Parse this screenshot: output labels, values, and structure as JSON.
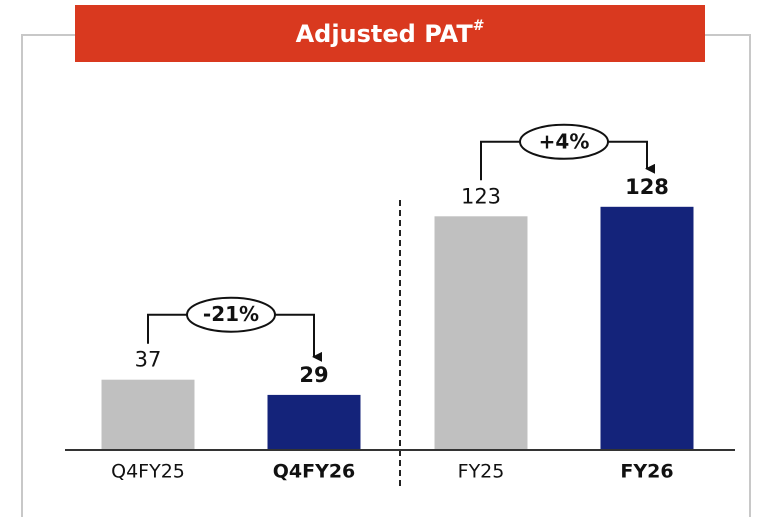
{
  "chart_data": {
    "type": "bar",
    "title": "Adjusted PAT",
    "title_superscript": "#",
    "categories": [
      "Q4FY25",
      "Q4FY26",
      "FY25",
      "FY26"
    ],
    "values": [
      37,
      29,
      123,
      128
    ],
    "colors": [
      "#c0c0c0",
      "#14237a",
      "#c0c0c0",
      "#14237a"
    ],
    "bold": [
      false,
      true,
      false,
      true
    ],
    "annotations": [
      {
        "text": "-21%",
        "from": 0,
        "to": 1
      },
      {
        "text": "+4%",
        "from": 2,
        "to": 3
      }
    ]
  }
}
